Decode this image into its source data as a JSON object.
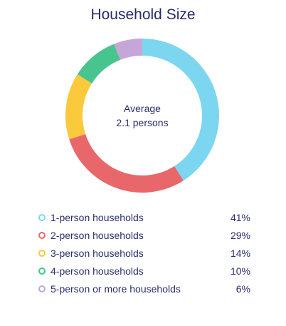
{
  "chart_data": {
    "type": "pie",
    "title": "Household Size",
    "center": {
      "label": "Average",
      "value": "2.1 persons"
    },
    "categories": [
      "1-person households",
      "2-person households",
      "3-person households",
      "4-person households",
      "5-person or more households"
    ],
    "values": [
      41,
      29,
      14,
      10,
      6
    ],
    "value_labels": [
      "41%",
      "29%",
      "14%",
      "10%",
      "6%"
    ],
    "colors": [
      "#7dd6f0",
      "#e8676b",
      "#fbc93c",
      "#48c48f",
      "#c6a6d9"
    ],
    "legend_position": "bottom"
  }
}
